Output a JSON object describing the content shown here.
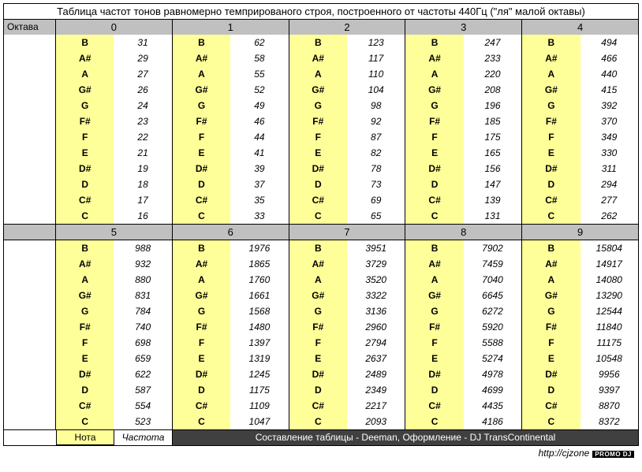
{
  "title": "Таблица частот тонов равномерно темпрированого строя, построенного от частоты 440Гц (\"ля\" малой октавы)",
  "octave_label": "Октава",
  "notes": [
    "B",
    "A#",
    "A",
    "G#",
    "G",
    "F#",
    "F",
    "E",
    "D#",
    "D",
    "C#",
    "C"
  ],
  "top_headers": [
    "0",
    "1",
    "2",
    "3",
    "4"
  ],
  "bottom_headers": [
    "5",
    "6",
    "7",
    "8",
    "9"
  ],
  "top_data": [
    [
      31,
      29,
      27,
      26,
      24,
      23,
      22,
      21,
      19,
      18,
      17,
      16
    ],
    [
      62,
      58,
      55,
      52,
      49,
      46,
      44,
      41,
      39,
      37,
      35,
      33
    ],
    [
      123,
      117,
      110,
      104,
      98,
      92,
      87,
      82,
      78,
      73,
      69,
      65
    ],
    [
      247,
      233,
      220,
      208,
      196,
      185,
      175,
      165,
      156,
      147,
      139,
      131
    ],
    [
      494,
      466,
      440,
      415,
      392,
      370,
      349,
      330,
      311,
      294,
      277,
      262
    ]
  ],
  "bottom_data": [
    [
      988,
      932,
      880,
      831,
      784,
      740,
      698,
      659,
      622,
      587,
      554,
      523
    ],
    [
      1976,
      1865,
      1760,
      1661,
      1568,
      1480,
      1397,
      1319,
      1245,
      1175,
      1109,
      1047
    ],
    [
      3951,
      3729,
      3520,
      3322,
      3136,
      2960,
      2794,
      2637,
      2489,
      2349,
      2217,
      2093
    ],
    [
      7902,
      7459,
      7040,
      6645,
      6272,
      5920,
      5588,
      5274,
      4978,
      4699,
      4435,
      4186
    ],
    [
      15804,
      14917,
      14080,
      13290,
      12544,
      11840,
      11175,
      10548,
      9956,
      9397,
      8870,
      8372
    ]
  ],
  "legend_note": "Нота",
  "legend_freq": "Частота",
  "credit": "Составление таблицы - Deeman, Оформление - DJ TransContinental",
  "url": "http://cjzone",
  "badge": "PROMO DJ",
  "colors": {
    "note_bg": "#ffff99",
    "header_bg": "#c0c0c0",
    "credit_bg": "#404040"
  }
}
